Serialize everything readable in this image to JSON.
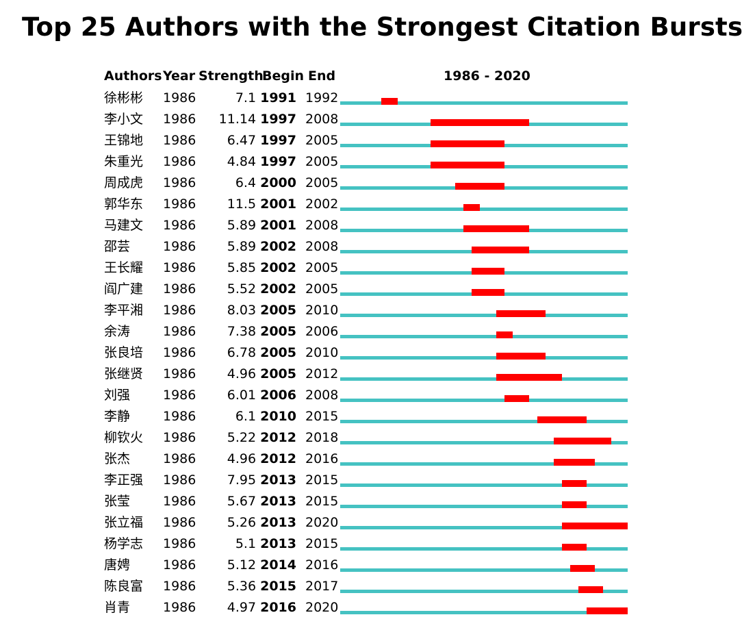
{
  "chart_data": {
    "type": "bar",
    "title": "Top 25 Authors with the Strongest Citation Bursts",
    "columns": [
      "Authors",
      "Year",
      "Strength",
      "Begin",
      "End"
    ],
    "range_label": "1986 - 2020",
    "range": [
      1986,
      2020
    ],
    "colors": {
      "baseline": "#45c2c2",
      "burst": "#ff0000"
    },
    "rows": [
      {
        "author": "徐彬彬",
        "year": "1986",
        "strength": "7.1",
        "begin": "1991",
        "end": "1992"
      },
      {
        "author": "李小文",
        "year": "1986",
        "strength": "11.14",
        "begin": "1997",
        "end": "2008"
      },
      {
        "author": "王锦地",
        "year": "1986",
        "strength": "6.47",
        "begin": "1997",
        "end": "2005"
      },
      {
        "author": "朱重光",
        "year": "1986",
        "strength": "4.84",
        "begin": "1997",
        "end": "2005"
      },
      {
        "author": "周成虎",
        "year": "1986",
        "strength": "6.4",
        "begin": "2000",
        "end": "2005"
      },
      {
        "author": "郭华东",
        "year": "1986",
        "strength": "11.5",
        "begin": "2001",
        "end": "2002"
      },
      {
        "author": "马建文",
        "year": "1986",
        "strength": "5.89",
        "begin": "2001",
        "end": "2008"
      },
      {
        "author": "邵芸",
        "year": "1986",
        "strength": "5.89",
        "begin": "2002",
        "end": "2008"
      },
      {
        "author": "王长耀",
        "year": "1986",
        "strength": "5.85",
        "begin": "2002",
        "end": "2005"
      },
      {
        "author": "阎广建",
        "year": "1986",
        "strength": "5.52",
        "begin": "2002",
        "end": "2005"
      },
      {
        "author": "李平湘",
        "year": "1986",
        "strength": "8.03",
        "begin": "2005",
        "end": "2010"
      },
      {
        "author": "余涛",
        "year": "1986",
        "strength": "7.38",
        "begin": "2005",
        "end": "2006"
      },
      {
        "author": "张良培",
        "year": "1986",
        "strength": "6.78",
        "begin": "2005",
        "end": "2010"
      },
      {
        "author": "张继贤",
        "year": "1986",
        "strength": "4.96",
        "begin": "2005",
        "end": "2012"
      },
      {
        "author": "刘强",
        "year": "1986",
        "strength": "6.01",
        "begin": "2006",
        "end": "2008"
      },
      {
        "author": "李静",
        "year": "1986",
        "strength": "6.1",
        "begin": "2010",
        "end": "2015"
      },
      {
        "author": "柳钦火",
        "year": "1986",
        "strength": "5.22",
        "begin": "2012",
        "end": "2018"
      },
      {
        "author": "张杰",
        "year": "1986",
        "strength": "4.96",
        "begin": "2012",
        "end": "2016"
      },
      {
        "author": "李正强",
        "year": "1986",
        "strength": "7.95",
        "begin": "2013",
        "end": "2015"
      },
      {
        "author": "张莹",
        "year": "1986",
        "strength": "5.67",
        "begin": "2013",
        "end": "2015"
      },
      {
        "author": "张立福",
        "year": "1986",
        "strength": "5.26",
        "begin": "2013",
        "end": "2020"
      },
      {
        "author": "杨学志",
        "year": "1986",
        "strength": "5.1",
        "begin": "2013",
        "end": "2015"
      },
      {
        "author": "唐娉",
        "year": "1986",
        "strength": "5.12",
        "begin": "2014",
        "end": "2016"
      },
      {
        "author": "陈良富",
        "year": "1986",
        "strength": "5.36",
        "begin": "2015",
        "end": "2017"
      },
      {
        "author": "肖青",
        "year": "1986",
        "strength": "4.97",
        "begin": "2016",
        "end": "2020"
      }
    ]
  }
}
